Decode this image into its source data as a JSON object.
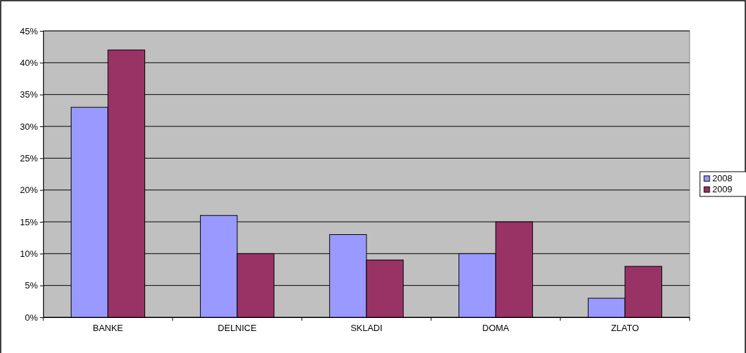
{
  "chart_data": {
    "type": "bar",
    "categories": [
      "BANKE",
      "DELNICE",
      "SKLADI",
      "DOMA",
      "ZLATO"
    ],
    "series": [
      {
        "name": "2008",
        "color": "#9999ff",
        "values": [
          33,
          16,
          13,
          10,
          3
        ]
      },
      {
        "name": "2009",
        "color": "#993366",
        "values": [
          42,
          10,
          9,
          15,
          8
        ]
      }
    ],
    "ylim": [
      0,
      45
    ],
    "yticks": [
      {
        "value": 0,
        "label": "0%"
      },
      {
        "value": 5,
        "label": "5%"
      },
      {
        "value": 10,
        "label": "10%"
      },
      {
        "value": 15,
        "label": "15%"
      },
      {
        "value": 20,
        "label": "20%"
      },
      {
        "value": 25,
        "label": "25%"
      },
      {
        "value": 30,
        "label": "30%"
      },
      {
        "value": 35,
        "label": "35%"
      },
      {
        "value": 40,
        "label": "40%"
      },
      {
        "value": 45,
        "label": "45%"
      }
    ],
    "grid": "y",
    "legend": "right"
  }
}
